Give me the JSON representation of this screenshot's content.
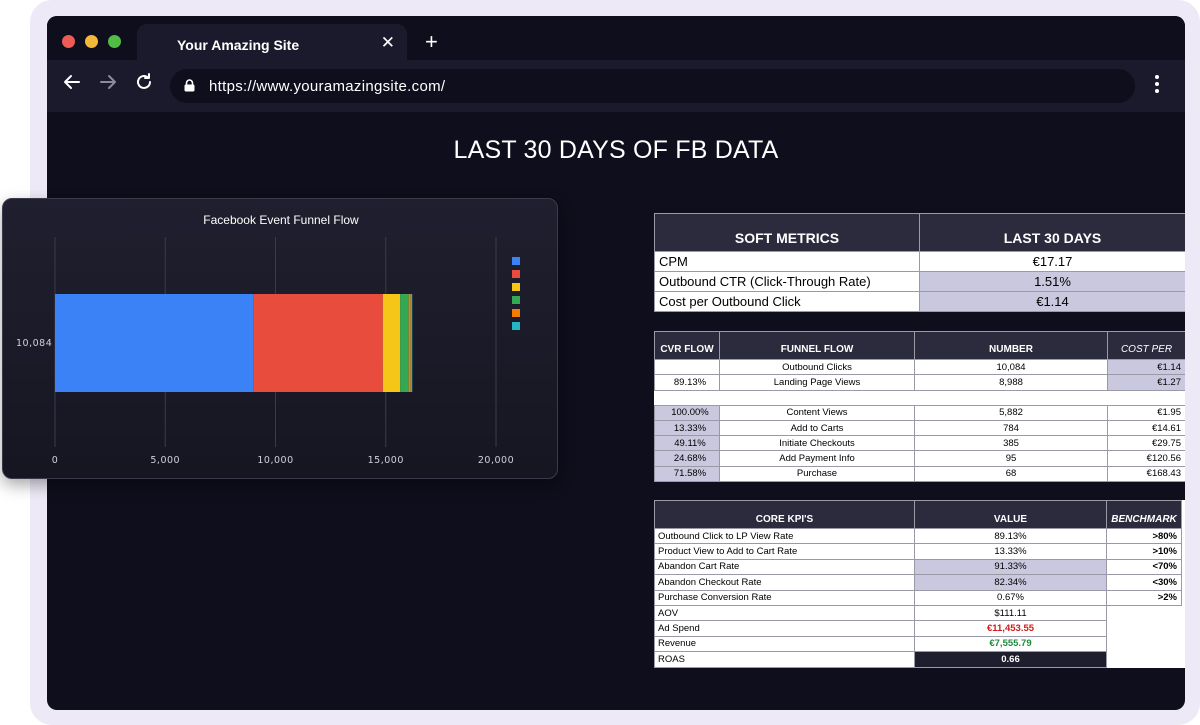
{
  "browser": {
    "tab_title": "Your Amazing Site",
    "url": "https://www.youramazingsite.com/"
  },
  "page_title": "LAST 30 DAYS OF FB DATA",
  "chart_data": {
    "type": "bar",
    "orientation": "horizontal",
    "stacked": true,
    "title": "Facebook Event Funnel Flow",
    "categories": [
      "10,084"
    ],
    "x_ticks": [
      "0",
      "5,000",
      "10,000",
      "15,000",
      "20,000"
    ],
    "xlim": [
      0,
      20000
    ],
    "series": [
      {
        "values": [
          8988
        ],
        "color": "#3b82f6"
      },
      {
        "values": [
          5882
        ],
        "color": "#e74c3c"
      },
      {
        "values": [
          784
        ],
        "color": "#f5c518"
      },
      {
        "values": [
          385
        ],
        "color": "#34a853"
      },
      {
        "values": [
          95
        ],
        "color": "#f57c00"
      },
      {
        "values": [
          68
        ],
        "color": "#26b5c5"
      }
    ],
    "legend": "right",
    "grid": true
  },
  "soft_metrics": {
    "headers": [
      "SOFT METRICS",
      "LAST 30 DAYS"
    ],
    "rows": [
      {
        "label": "CPM",
        "value": "€17.17",
        "hl": false
      },
      {
        "label": "Outbound CTR (Click-Through Rate)",
        "value": "1.51%",
        "hl": true
      },
      {
        "label": "Cost per Outbound Click",
        "value": "€1.14",
        "hl": true
      }
    ]
  },
  "funnel": {
    "headers": [
      "CVR FLOW",
      "FUNNEL FLOW",
      "NUMBER",
      "COST PER"
    ],
    "top_rows": [
      {
        "cvr": "",
        "step": "Outbound Clicks",
        "number": "10,084",
        "cost": "€1.14"
      },
      {
        "cvr": "89.13%",
        "step": "Landing Page Views",
        "number": "8,988",
        "cost": "€1.27"
      }
    ],
    "bottom_rows": [
      {
        "cvr": "100.00%",
        "step": "Content Views",
        "number": "5,882",
        "cost": "€1.95"
      },
      {
        "cvr": "13.33%",
        "step": "Add to Carts",
        "number": "784",
        "cost": "€14.61"
      },
      {
        "cvr": "49.11%",
        "step": "Initiate Checkouts",
        "number": "385",
        "cost": "€29.75"
      },
      {
        "cvr": "24.68%",
        "step": "Add Payment Info",
        "number": "95",
        "cost": "€120.56"
      },
      {
        "cvr": "71.58%",
        "step": "Purchase",
        "number": "68",
        "cost": "€168.43"
      }
    ]
  },
  "kpis": {
    "headers": [
      "CORE KPI'S",
      "VALUE",
      "BENCHMARK"
    ],
    "rows": [
      {
        "label": "Outbound Click to LP View Rate",
        "value": "89.13%",
        "bench": ">80%",
        "hl": false
      },
      {
        "label": "Product View to Add to Cart Rate",
        "value": "13.33%",
        "bench": ">10%",
        "hl": false
      },
      {
        "label": "Abandon Cart Rate",
        "value": "91.33%",
        "bench": "<70%",
        "hl": true
      },
      {
        "label": "Abandon Checkout Rate",
        "value": "82.34%",
        "bench": "<30%",
        "hl": true
      },
      {
        "label": "Purchase Conversion Rate",
        "value": "0.67%",
        "bench": ">2%",
        "hl": false
      },
      {
        "label": "AOV",
        "value": "$111.11"
      },
      {
        "label": "Ad Spend",
        "value": "€11,453.55"
      },
      {
        "label": "Revenue",
        "value": "€7,555.79"
      },
      {
        "label": "ROAS",
        "value": "0.66"
      }
    ]
  }
}
